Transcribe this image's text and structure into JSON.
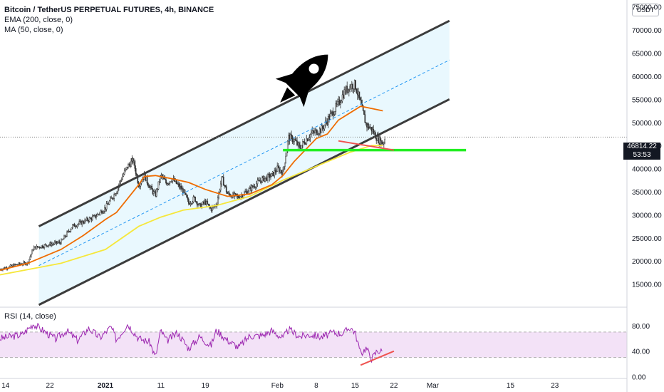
{
  "header": {
    "title": "Bitcoin / TetherUS PERPETUAL FUTURES, 4h, BINANCE",
    "ema": "EMA (200, close, 0)",
    "ma": "MA (50, close, 0)",
    "currency": "USDT"
  },
  "rsi_label": "RSI (14, close)",
  "last_price": "46814.22",
  "countdown": "53:53",
  "colors": {
    "candles": "#333333",
    "ema": "#ef6c00",
    "ma": "#f6e73b",
    "channel_line": "#3c3c3c",
    "channel_fill": "#e1f5fd",
    "midline": "#2196f3",
    "support": "#22ee22",
    "divergence": "#ef5350",
    "rsi_line": "#9c27b0",
    "rsi_band": "#f3e2f7"
  },
  "chart_data": [
    {
      "type": "candlestick",
      "title": "Bitcoin / TetherUS PERPETUAL FUTURES, 4h, BINANCE",
      "x_ticks": [
        "14",
        "22",
        "2021",
        "11",
        "19",
        "Feb",
        "8",
        "15",
        "22",
        "Mar",
        "15",
        "23"
      ],
      "x_tick_days": [
        0,
        8,
        18,
        28,
        36,
        49,
        56,
        63,
        70,
        77,
        91,
        99
      ],
      "x_range_days": [
        -1,
        112
      ],
      "y_ticks": [
        15000,
        20000,
        25000,
        30000,
        35000,
        40000,
        45000,
        50000,
        55000,
        60000,
        65000,
        70000,
        75000
      ],
      "y_tick_labels": [
        "15000.00",
        "20000.00",
        "25000.00",
        "30000.00",
        "35000.00",
        "40000.00",
        "45000.00",
        "50000.00",
        "55000.00",
        "60000.00",
        "65000.00",
        "70000.00",
        "75000.00"
      ],
      "ylim": [
        10000,
        76500
      ],
      "close_path": [
        [
          -1,
          18200
        ],
        [
          2,
          19200
        ],
        [
          4,
          19600
        ],
        [
          5,
          22800
        ],
        [
          8,
          23600
        ],
        [
          10,
          24100
        ],
        [
          12,
          27500
        ],
        [
          14,
          28500
        ],
        [
          16,
          29500
        ],
        [
          18,
          31500
        ],
        [
          20,
          35200
        ],
        [
          21,
          38200
        ],
        [
          22,
          40500
        ],
        [
          23,
          41800
        ],
        [
          24,
          36500
        ],
        [
          25,
          38500
        ],
        [
          26,
          36000
        ],
        [
          27,
          34200
        ],
        [
          28,
          38500
        ],
        [
          29,
          36800
        ],
        [
          30,
          37800
        ],
        [
          32,
          35200
        ],
        [
          33,
          32500
        ],
        [
          34,
          33600
        ],
        [
          35,
          31800
        ],
        [
          36,
          32800
        ],
        [
          37,
          31200
        ],
        [
          38,
          32200
        ],
        [
          39,
          38000
        ],
        [
          40,
          34500
        ],
        [
          42,
          33800
        ],
        [
          44,
          35500
        ],
        [
          46,
          37500
        ],
        [
          48,
          38500
        ],
        [
          49,
          40000
        ],
        [
          50,
          39200
        ],
        [
          51,
          46800
        ],
        [
          52,
          46200
        ],
        [
          53,
          44500
        ],
        [
          55,
          47500
        ],
        [
          57,
          48500
        ],
        [
          58,
          50500
        ],
        [
          60,
          54000
        ],
        [
          61,
          56500
        ],
        [
          62,
          57800
        ],
        [
          63,
          58200
        ],
        [
          64,
          54000
        ],
        [
          65,
          49500
        ],
        [
          66,
          48500
        ],
        [
          67,
          46500
        ],
        [
          68,
          45500
        ],
        [
          68.5,
          46814
        ]
      ],
      "ema_200": [
        [
          -1,
          18000
        ],
        [
          4,
          19500
        ],
        [
          10,
          22500
        ],
        [
          14,
          25500
        ],
        [
          18,
          29000
        ],
        [
          20,
          30500
        ],
        [
          22,
          33500
        ],
        [
          24,
          36500
        ],
        [
          25,
          38300
        ],
        [
          27,
          38500
        ],
        [
          30,
          37800
        ],
        [
          33,
          37000
        ],
        [
          36,
          35500
        ],
        [
          40,
          34000
        ],
        [
          44,
          34500
        ],
        [
          48,
          36500
        ],
        [
          50,
          38500
        ],
        [
          52,
          41500
        ],
        [
          54,
          44000
        ],
        [
          56,
          46500
        ],
        [
          58,
          47500
        ],
        [
          60,
          50500
        ],
        [
          62,
          52000
        ],
        [
          64,
          53500
        ],
        [
          66,
          53000
        ],
        [
          68,
          52500
        ]
      ],
      "ma_50": [
        [
          -1,
          17000
        ],
        [
          10,
          19500
        ],
        [
          18,
          22500
        ],
        [
          24,
          27500
        ],
        [
          28,
          29500
        ],
        [
          32,
          31000
        ],
        [
          38,
          32000
        ],
        [
          44,
          34000
        ],
        [
          50,
          37500
        ],
        [
          56,
          40500
        ],
        [
          62,
          43500
        ],
        [
          66,
          45000
        ],
        [
          68,
          45000
        ]
      ],
      "channel_upper": [
        [
          6,
          27500
        ],
        [
          80,
          72000
        ]
      ],
      "channel_lower": [
        [
          6,
          10500
        ],
        [
          80,
          55000
        ]
      ],
      "channel_mid": [
        [
          6,
          19000
        ],
        [
          80,
          63500
        ]
      ],
      "support_level": {
        "from_day": 50,
        "to_day": 83,
        "value": 44000
      },
      "divergence_line_price": [
        [
          60,
          46000
        ],
        [
          70,
          44000
        ]
      ],
      "last_price": 46814.22
    },
    {
      "type": "line",
      "title": "RSI (14, close)",
      "ylim": [
        -3,
        108
      ],
      "y_ticks": [
        0,
        40,
        80
      ],
      "y_tick_labels": [
        "0.00",
        "40.00",
        "80.00"
      ],
      "band": [
        30,
        70
      ],
      "rsi_path": [
        [
          -1,
          60
        ],
        [
          3,
          66
        ],
        [
          5,
          83
        ],
        [
          7,
          71
        ],
        [
          9,
          59
        ],
        [
          11,
          72
        ],
        [
          13,
          57
        ],
        [
          15,
          76
        ],
        [
          17,
          61
        ],
        [
          19,
          78
        ],
        [
          20,
          58
        ],
        [
          22,
          83
        ],
        [
          24,
          60
        ],
        [
          26,
          54
        ],
        [
          27,
          30
        ],
        [
          28,
          73
        ],
        [
          29,
          56
        ],
        [
          31,
          69
        ],
        [
          33,
          44
        ],
        [
          35,
          63
        ],
        [
          37,
          48
        ],
        [
          38,
          73
        ],
        [
          40,
          57
        ],
        [
          42,
          46
        ],
        [
          44,
          64
        ],
        [
          46,
          64
        ],
        [
          48,
          72
        ],
        [
          50,
          60
        ],
        [
          51,
          74
        ],
        [
          53,
          63
        ],
        [
          55,
          66
        ],
        [
          57,
          62
        ],
        [
          59,
          69
        ],
        [
          61,
          68
        ],
        [
          62,
          78
        ],
        [
          63,
          70
        ],
        [
          64,
          36
        ],
        [
          65,
          45
        ],
        [
          66,
          28
        ],
        [
          67,
          41
        ],
        [
          68,
          39
        ]
      ],
      "divergence_line_rsi": [
        [
          64,
          18
        ],
        [
          70,
          40
        ]
      ]
    }
  ]
}
